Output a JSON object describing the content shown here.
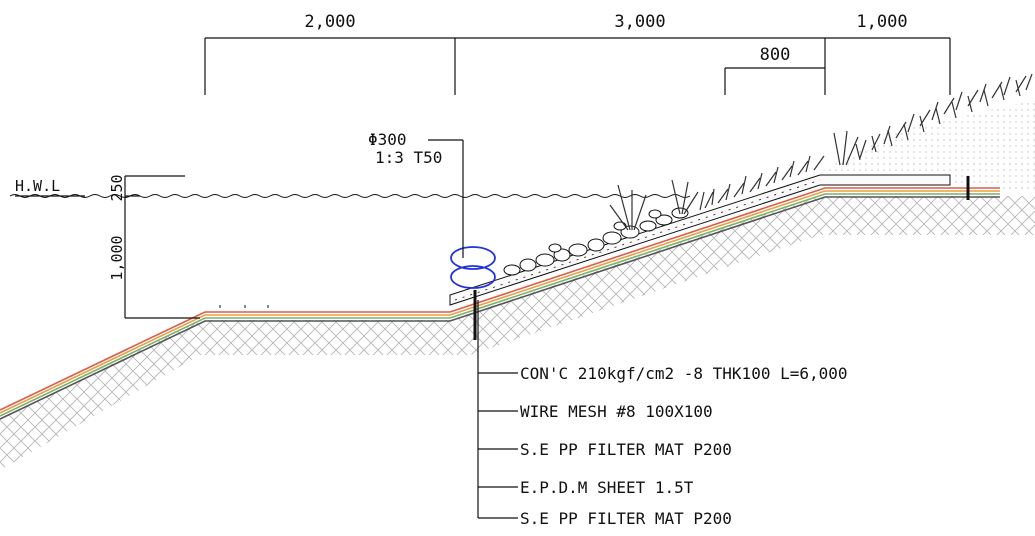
{
  "dimensions": {
    "d1": "2,000",
    "d2": "3,000",
    "d3": "1,000",
    "d4": "800"
  },
  "water": {
    "hwl": "H.W.L",
    "freeboard": "250",
    "depth": "1,000"
  },
  "pipe": {
    "diameter": "Φ300",
    "mortar": "1:3 T50"
  },
  "layers": [
    "CON'C 210kgf/cm2 -8  THK100 L=6,000",
    "WIRE MESH #8 100X100",
    "S.E PP FILTER MAT P200",
    "E.P.D.M SHEET 1.5T",
    "S.E PP FILTER MAT P200"
  ],
  "colors": {
    "line": "#111111",
    "pipe": "#2233dd",
    "layer_red": "#e05a4a",
    "layer_orange": "#e8a040",
    "layer_green": "#7ab070"
  }
}
